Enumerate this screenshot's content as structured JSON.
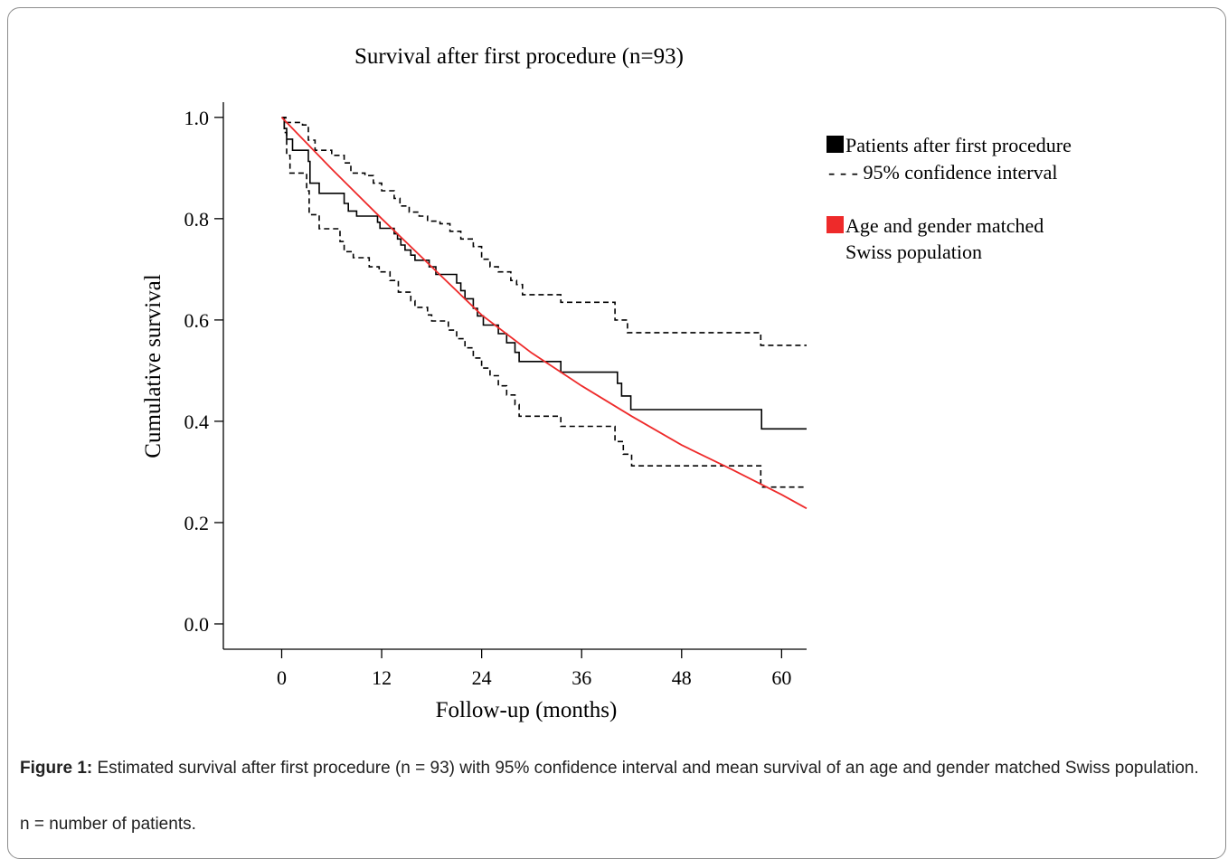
{
  "figure": {
    "caption_label": "Figure 1:",
    "caption_text": " Estimated survival after first procedure (n = 93) with 95% confidence interval and mean survival of an age and gender matched Swiss population.",
    "note": "n = number of patients."
  },
  "chart_data": {
    "type": "line",
    "title": "Survival after first procedure (n=93)",
    "xlabel": "Follow-up (months)",
    "ylabel": "Cumulative survival",
    "xlim": [
      -7,
      63
    ],
    "ylim": [
      -0.05,
      1.03
    ],
    "xticks": [
      0,
      12,
      24,
      36,
      48,
      60
    ],
    "xtick_labels": [
      "0",
      "12",
      "24",
      "36",
      "48",
      "60"
    ],
    "yticks": [
      0.0,
      0.2,
      0.4,
      0.6,
      0.8,
      1.0
    ],
    "ytick_labels": [
      "0.0",
      "0.2",
      "0.4",
      "0.6",
      "0.8",
      "1.0"
    ],
    "grid": false,
    "legend_position": "right",
    "legend": [
      {
        "label": "Patients after first procedure",
        "marker": "filled-square",
        "color": "#000000"
      },
      {
        "label": "- - - 95% confidence interval",
        "marker": "none",
        "color": "#000000"
      },
      {
        "label": "Age and gender matched",
        "label2": "Swiss population",
        "marker": "filled-square",
        "color": "#ee2a2a"
      }
    ],
    "series": [
      {
        "name": "Patients after first procedure",
        "style": "step",
        "color": "#000000",
        "points": [
          [
            0,
            1.0
          ],
          [
            0.3,
            0.978
          ],
          [
            0.6,
            0.957
          ],
          [
            1.3,
            0.935
          ],
          [
            3.2,
            0.913
          ],
          [
            3.4,
            0.87
          ],
          [
            4.5,
            0.85
          ],
          [
            7.5,
            0.83
          ],
          [
            8.0,
            0.815
          ],
          [
            9.0,
            0.805
          ],
          [
            11.5,
            0.793
          ],
          [
            11.8,
            0.781
          ],
          [
            13.5,
            0.77
          ],
          [
            13.9,
            0.76
          ],
          [
            14.3,
            0.748
          ],
          [
            14.8,
            0.738
          ],
          [
            15.5,
            0.728
          ],
          [
            16.0,
            0.718
          ],
          [
            17.7,
            0.705
          ],
          [
            18.5,
            0.69
          ],
          [
            21.0,
            0.673
          ],
          [
            21.5,
            0.658
          ],
          [
            22.0,
            0.642
          ],
          [
            23.0,
            0.623
          ],
          [
            23.5,
            0.608
          ],
          [
            24.2,
            0.59
          ],
          [
            26.0,
            0.573
          ],
          [
            27.0,
            0.555
          ],
          [
            28.0,
            0.536
          ],
          [
            28.5,
            0.518
          ],
          [
            33.5,
            0.497
          ],
          [
            40.3,
            0.475
          ],
          [
            40.8,
            0.45
          ],
          [
            41.9,
            0.423
          ],
          [
            57.6,
            0.385
          ],
          [
            63.0,
            0.385
          ]
        ]
      },
      {
        "name": "95% confidence interval (upper)",
        "style": "step-dashed",
        "color": "#000000",
        "points": [
          [
            0,
            1.0
          ],
          [
            0.5,
            0.99
          ],
          [
            2.5,
            0.985
          ],
          [
            3.2,
            0.955
          ],
          [
            4.0,
            0.935
          ],
          [
            6.0,
            0.925
          ],
          [
            7.5,
            0.91
          ],
          [
            8.3,
            0.89
          ],
          [
            10.0,
            0.885
          ],
          [
            11.0,
            0.87
          ],
          [
            12.0,
            0.855
          ],
          [
            13.5,
            0.84
          ],
          [
            14.2,
            0.825
          ],
          [
            15.3,
            0.813
          ],
          [
            16.5,
            0.805
          ],
          [
            17.5,
            0.795
          ],
          [
            19.0,
            0.79
          ],
          [
            20.2,
            0.775
          ],
          [
            21.5,
            0.76
          ],
          [
            23.0,
            0.745
          ],
          [
            24.0,
            0.72
          ],
          [
            25.0,
            0.705
          ],
          [
            26.0,
            0.695
          ],
          [
            27.5,
            0.678
          ],
          [
            28.2,
            0.67
          ],
          [
            28.9,
            0.65
          ],
          [
            33.5,
            0.635
          ],
          [
            40.0,
            0.6
          ],
          [
            41.5,
            0.575
          ],
          [
            57.5,
            0.55
          ],
          [
            63.0,
            0.55
          ]
        ]
      },
      {
        "name": "95% confidence interval (lower)",
        "style": "step-dashed",
        "color": "#000000",
        "points": [
          [
            0,
            1.0
          ],
          [
            0.3,
            0.97
          ],
          [
            0.6,
            0.925
          ],
          [
            1.0,
            0.89
          ],
          [
            3.0,
            0.855
          ],
          [
            3.3,
            0.808
          ],
          [
            4.5,
            0.78
          ],
          [
            7.0,
            0.755
          ],
          [
            7.5,
            0.735
          ],
          [
            8.6,
            0.723
          ],
          [
            10.5,
            0.705
          ],
          [
            11.7,
            0.695
          ],
          [
            13.0,
            0.678
          ],
          [
            14.0,
            0.655
          ],
          [
            15.5,
            0.638
          ],
          [
            16.0,
            0.625
          ],
          [
            17.5,
            0.61
          ],
          [
            18.0,
            0.598
          ],
          [
            20.0,
            0.58
          ],
          [
            21.0,
            0.563
          ],
          [
            22.0,
            0.545
          ],
          [
            23.0,
            0.525
          ],
          [
            24.0,
            0.505
          ],
          [
            25.0,
            0.49
          ],
          [
            26.0,
            0.47
          ],
          [
            27.0,
            0.452
          ],
          [
            28.0,
            0.433
          ],
          [
            28.5,
            0.41
          ],
          [
            33.5,
            0.39
          ],
          [
            40.0,
            0.36
          ],
          [
            41.0,
            0.335
          ],
          [
            42.0,
            0.312
          ],
          [
            57.5,
            0.27
          ],
          [
            63.0,
            0.27
          ]
        ]
      },
      {
        "name": "Age and gender matched Swiss population",
        "style": "line",
        "color": "#ee2a2a",
        "points": [
          [
            0,
            1.0
          ],
          [
            6,
            0.898
          ],
          [
            12,
            0.8
          ],
          [
            18,
            0.705
          ],
          [
            24,
            0.61
          ],
          [
            30,
            0.535
          ],
          [
            36,
            0.47
          ],
          [
            42,
            0.41
          ],
          [
            48,
            0.353
          ],
          [
            54,
            0.305
          ],
          [
            60,
            0.255
          ],
          [
            63,
            0.228
          ]
        ]
      }
    ]
  }
}
